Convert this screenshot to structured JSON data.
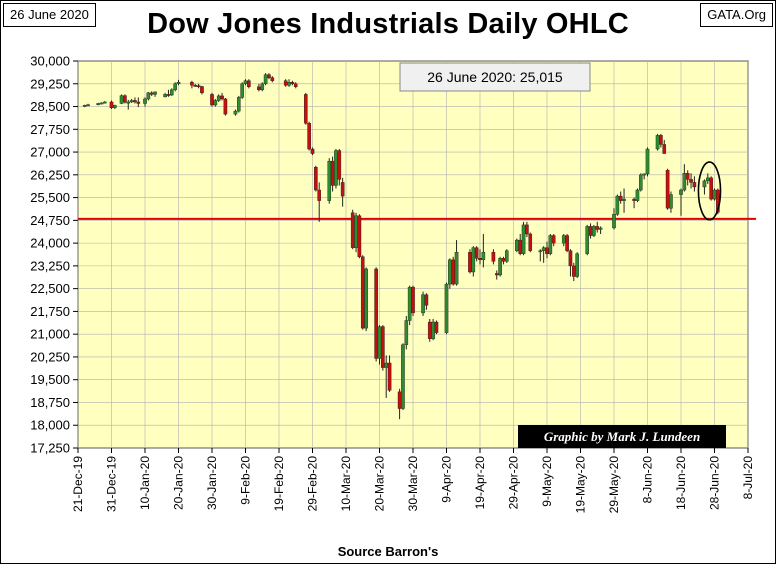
{
  "header": {
    "date_label": "26 June 2020",
    "source_label": "GATA.Org",
    "title": "Dow Jones Industrials Daily OHLC"
  },
  "annotations": {
    "latest_close": "26 June 2020: 25,015",
    "credit": "Graphic by Mark J. Lundeen",
    "source": "Source Barron's"
  },
  "colors": {
    "plot_bg": "#ffffc0",
    "up": "#2e8b2e",
    "down": "#c01010",
    "reference_line": "#e00000",
    "grid": "#b0b0b0"
  },
  "chart_data": {
    "type": "candlestick",
    "title": "Dow Jones Industrials Daily OHLC",
    "xlabel": "Source Barron's",
    "ylabel": "",
    "ylim": [
      17250,
      30000
    ],
    "yticks": [
      17250,
      18000,
      18750,
      19500,
      20250,
      21000,
      21750,
      22500,
      23250,
      24000,
      24750,
      25500,
      26250,
      27000,
      27750,
      28500,
      29250,
      30000
    ],
    "ytick_labels": [
      "17,250",
      "18,000",
      "18,750",
      "19,500",
      "20,250",
      "21,000",
      "21,750",
      "22,500",
      "23,250",
      "24,000",
      "24,750",
      "25,500",
      "26,250",
      "27,000",
      "27,750",
      "28,500",
      "29,250",
      "30,000"
    ],
    "xticks": [
      "21-Dec-19",
      "31-Dec-19",
      "10-Jan-20",
      "20-Jan-20",
      "30-Jan-20",
      "9-Feb-20",
      "19-Feb-20",
      "29-Feb-20",
      "10-Mar-20",
      "20-Mar-20",
      "30-Mar-20",
      "9-Apr-20",
      "19-Apr-20",
      "29-Apr-20",
      "9-May-20",
      "19-May-20",
      "29-May-20",
      "8-Jun-20",
      "18-Jun-20",
      "28-Jun-20",
      "8-Jul-20"
    ],
    "xrange_days": [
      0,
      200
    ],
    "grid": true,
    "reference_line": 24800,
    "candles": [
      {
        "d": 2,
        "o": 28520,
        "h": 28560,
        "l": 28480,
        "c": 28540
      },
      {
        "d": 3,
        "o": 28540,
        "h": 28590,
        "l": 28520,
        "c": 28560
      },
      {
        "d": 6,
        "o": 28560,
        "h": 28620,
        "l": 28540,
        "c": 28600
      },
      {
        "d": 7,
        "o": 28600,
        "h": 28640,
        "l": 28570,
        "c": 28620
      },
      {
        "d": 8,
        "o": 28620,
        "h": 28680,
        "l": 28600,
        "c": 28650
      },
      {
        "d": 10,
        "o": 28650,
        "h": 28700,
        "l": 28420,
        "c": 28460
      },
      {
        "d": 11,
        "o": 28460,
        "h": 28560,
        "l": 28420,
        "c": 28540
      },
      {
        "d": 13,
        "o": 28600,
        "h": 28900,
        "l": 28580,
        "c": 28860
      },
      {
        "d": 14,
        "o": 28860,
        "h": 28900,
        "l": 28600,
        "c": 28640
      },
      {
        "d": 15,
        "o": 28640,
        "h": 28720,
        "l": 28400,
        "c": 28650
      },
      {
        "d": 16,
        "o": 28650,
        "h": 28750,
        "l": 28620,
        "c": 28700
      },
      {
        "d": 17,
        "o": 28700,
        "h": 28800,
        "l": 28600,
        "c": 28650
      },
      {
        "d": 18,
        "o": 28650,
        "h": 28800,
        "l": 28480,
        "c": 28600
      },
      {
        "d": 20,
        "o": 28600,
        "h": 28800,
        "l": 28500,
        "c": 28750
      },
      {
        "d": 21,
        "o": 28750,
        "h": 28980,
        "l": 28700,
        "c": 28950
      },
      {
        "d": 22,
        "o": 28950,
        "h": 29000,
        "l": 28850,
        "c": 28900
      },
      {
        "d": 23,
        "o": 28900,
        "h": 29000,
        "l": 28820,
        "c": 28980
      },
      {
        "d": 26,
        "o": 28820,
        "h": 28950,
        "l": 28800,
        "c": 28900
      },
      {
        "d": 27,
        "o": 28900,
        "h": 29050,
        "l": 28820,
        "c": 28880
      },
      {
        "d": 28,
        "o": 28880,
        "h": 29100,
        "l": 28850,
        "c": 29050
      },
      {
        "d": 29,
        "o": 29050,
        "h": 29300,
        "l": 29000,
        "c": 29250
      },
      {
        "d": 30,
        "o": 29250,
        "h": 29380,
        "l": 29200,
        "c": 29300
      },
      {
        "d": 34,
        "o": 29300,
        "h": 29350,
        "l": 29100,
        "c": 29200
      },
      {
        "d": 35,
        "o": 29200,
        "h": 29250,
        "l": 29150,
        "c": 29190
      },
      {
        "d": 36,
        "o": 29190,
        "h": 29250,
        "l": 29100,
        "c": 29160
      },
      {
        "d": 37,
        "o": 29160,
        "h": 29180,
        "l": 28900,
        "c": 28950
      },
      {
        "d": 40,
        "o": 28900,
        "h": 28950,
        "l": 28500,
        "c": 28550
      },
      {
        "d": 41,
        "o": 28550,
        "h": 28750,
        "l": 28500,
        "c": 28700
      },
      {
        "d": 42,
        "o": 28700,
        "h": 28900,
        "l": 28650,
        "c": 28850
      },
      {
        "d": 43,
        "o": 28850,
        "h": 28950,
        "l": 28700,
        "c": 28750
      },
      {
        "d": 44,
        "o": 28750,
        "h": 28780,
        "l": 28200,
        "c": 28250
      },
      {
        "d": 47,
        "o": 28250,
        "h": 28400,
        "l": 28200,
        "c": 28350
      },
      {
        "d": 48,
        "o": 28350,
        "h": 28850,
        "l": 28300,
        "c": 28800
      },
      {
        "d": 49,
        "o": 28800,
        "h": 29300,
        "l": 28750,
        "c": 29250
      },
      {
        "d": 50,
        "o": 29250,
        "h": 29400,
        "l": 29200,
        "c": 29350
      },
      {
        "d": 51,
        "o": 29350,
        "h": 29400,
        "l": 29100,
        "c": 29150
      },
      {
        "d": 54,
        "o": 29150,
        "h": 29250,
        "l": 29000,
        "c": 29050
      },
      {
        "d": 55,
        "o": 29050,
        "h": 29300,
        "l": 29000,
        "c": 29250
      },
      {
        "d": 56,
        "o": 29250,
        "h": 29600,
        "l": 29200,
        "c": 29550
      },
      {
        "d": 57,
        "o": 29550,
        "h": 29600,
        "l": 29400,
        "c": 29450
      },
      {
        "d": 58,
        "o": 29450,
        "h": 29500,
        "l": 29300,
        "c": 29350
      },
      {
        "d": 62,
        "o": 29350,
        "h": 29400,
        "l": 29150,
        "c": 29200
      },
      {
        "d": 63,
        "o": 29200,
        "h": 29400,
        "l": 29150,
        "c": 29300
      },
      {
        "d": 64,
        "o": 29300,
        "h": 29350,
        "l": 29200,
        "c": 29250
      },
      {
        "d": 65,
        "o": 29250,
        "h": 29300,
        "l": 29100,
        "c": 29150
      },
      {
        "d": 68,
        "o": 28900,
        "h": 28950,
        "l": 27900,
        "c": 27950
      },
      {
        "d": 69,
        "o": 27950,
        "h": 28000,
        "l": 27050,
        "c": 27100
      },
      {
        "d": 70,
        "o": 27100,
        "h": 27150,
        "l": 26900,
        "c": 26950
      },
      {
        "d": 71,
        "o": 26500,
        "h": 26550,
        "l": 25700,
        "c": 25750
      },
      {
        "d": 72,
        "o": 25750,
        "h": 26000,
        "l": 24700,
        "c": 25400
      },
      {
        "d": 75,
        "o": 25400,
        "h": 26800,
        "l": 25300,
        "c": 26700
      },
      {
        "d": 76,
        "o": 26700,
        "h": 26850,
        "l": 25700,
        "c": 25900
      },
      {
        "d": 77,
        "o": 25900,
        "h": 27100,
        "l": 25800,
        "c": 27050
      },
      {
        "d": 78,
        "o": 27050,
        "h": 27100,
        "l": 25900,
        "c": 26100
      },
      {
        "d": 79,
        "o": 26000,
        "h": 26150,
        "l": 25200,
        "c": 25550
      },
      {
        "d": 82,
        "o": 25000,
        "h": 25100,
        "l": 23800,
        "c": 23850
      },
      {
        "d": 83,
        "o": 23850,
        "h": 25000,
        "l": 23700,
        "c": 24900
      },
      {
        "d": 84,
        "o": 24900,
        "h": 24950,
        "l": 23500,
        "c": 23550
      },
      {
        "d": 85,
        "o": 23550,
        "h": 23600,
        "l": 21150,
        "c": 21200
      },
      {
        "d": 86,
        "o": 21200,
        "h": 23200,
        "l": 21100,
        "c": 23150
      },
      {
        "d": 89,
        "o": 23150,
        "h": 23200,
        "l": 20100,
        "c": 20200
      },
      {
        "d": 90,
        "o": 20200,
        "h": 21300,
        "l": 20000,
        "c": 21250
      },
      {
        "d": 91,
        "o": 21250,
        "h": 21300,
        "l": 19800,
        "c": 19900
      },
      {
        "d": 92,
        "o": 19900,
        "h": 20300,
        "l": 18900,
        "c": 20050
      },
      {
        "d": 93,
        "o": 20050,
        "h": 20300,
        "l": 19100,
        "c": 19150
      },
      {
        "d": 96,
        "o": 19100,
        "h": 19200,
        "l": 18200,
        "c": 18550
      },
      {
        "d": 97,
        "o": 18550,
        "h": 20700,
        "l": 18500,
        "c": 20650
      },
      {
        "d": 98,
        "o": 20650,
        "h": 21600,
        "l": 20500,
        "c": 21450
      },
      {
        "d": 99,
        "o": 21450,
        "h": 22600,
        "l": 21300,
        "c": 22550
      },
      {
        "d": 100,
        "o": 22550,
        "h": 22600,
        "l": 21600,
        "c": 21700
      },
      {
        "d": 103,
        "o": 21700,
        "h": 22400,
        "l": 21600,
        "c": 22300
      },
      {
        "d": 104,
        "o": 22300,
        "h": 22350,
        "l": 21800,
        "c": 21950
      },
      {
        "d": 105,
        "o": 21400,
        "h": 21500,
        "l": 20750,
        "c": 20850
      },
      {
        "d": 106,
        "o": 20850,
        "h": 21500,
        "l": 20800,
        "c": 21400
      },
      {
        "d": 107,
        "o": 21400,
        "h": 21450,
        "l": 21000,
        "c": 21050
      },
      {
        "d": 110,
        "o": 21050,
        "h": 22700,
        "l": 21000,
        "c": 22650
      },
      {
        "d": 111,
        "o": 22650,
        "h": 23500,
        "l": 22500,
        "c": 23450
      },
      {
        "d": 112,
        "o": 23450,
        "h": 23550,
        "l": 22600,
        "c": 22650
      },
      {
        "d": 113,
        "o": 22650,
        "h": 24100,
        "l": 22600,
        "c": 23700
      },
      {
        "d": 117,
        "o": 23700,
        "h": 23800,
        "l": 23000,
        "c": 23050
      },
      {
        "d": 118,
        "o": 23050,
        "h": 23900,
        "l": 22900,
        "c": 23850
      },
      {
        "d": 119,
        "o": 23850,
        "h": 23900,
        "l": 23400,
        "c": 23500
      },
      {
        "d": 120,
        "o": 23500,
        "h": 23800,
        "l": 23300,
        "c": 23450
      },
      {
        "d": 121,
        "o": 23450,
        "h": 24300,
        "l": 23200,
        "c": 23700
      },
      {
        "d": 124,
        "o": 23700,
        "h": 23800,
        "l": 23300,
        "c": 23400
      },
      {
        "d": 125,
        "o": 23000,
        "h": 23100,
        "l": 22800,
        "c": 22950
      },
      {
        "d": 126,
        "o": 22950,
        "h": 23550,
        "l": 22900,
        "c": 23500
      },
      {
        "d": 127,
        "o": 23500,
        "h": 23550,
        "l": 23300,
        "c": 23400
      },
      {
        "d": 128,
        "o": 23400,
        "h": 23800,
        "l": 23350,
        "c": 23750
      },
      {
        "d": 131,
        "o": 23750,
        "h": 24150,
        "l": 23700,
        "c": 24100
      },
      {
        "d": 132,
        "o": 24100,
        "h": 24300,
        "l": 23600,
        "c": 23650
      },
      {
        "d": 133,
        "o": 23650,
        "h": 24700,
        "l": 23600,
        "c": 24600
      },
      {
        "d": 134,
        "o": 24600,
        "h": 24700,
        "l": 24200,
        "c": 24300
      },
      {
        "d": 135,
        "o": 24300,
        "h": 24350,
        "l": 23700,
        "c": 23750
      },
      {
        "d": 138,
        "o": 23750,
        "h": 23800,
        "l": 23400,
        "c": 23750
      },
      {
        "d": 139,
        "o": 23750,
        "h": 23900,
        "l": 23350,
        "c": 23850
      },
      {
        "d": 140,
        "o": 23850,
        "h": 24050,
        "l": 23500,
        "c": 23650
      },
      {
        "d": 141,
        "o": 23650,
        "h": 24300,
        "l": 23600,
        "c": 24250
      },
      {
        "d": 142,
        "o": 24250,
        "h": 24300,
        "l": 23900,
        "c": 24000
      },
      {
        "d": 145,
        "o": 24000,
        "h": 24300,
        "l": 23900,
        "c": 24250
      },
      {
        "d": 146,
        "o": 24250,
        "h": 24300,
        "l": 23700,
        "c": 23750
      },
      {
        "d": 147,
        "o": 23750,
        "h": 23800,
        "l": 22900,
        "c": 23250
      },
      {
        "d": 148,
        "o": 23250,
        "h": 23350,
        "l": 22750,
        "c": 22900
      },
      {
        "d": 149,
        "o": 22900,
        "h": 23700,
        "l": 22850,
        "c": 23650
      },
      {
        "d": 152,
        "o": 23650,
        "h": 24600,
        "l": 23600,
        "c": 24550
      },
      {
        "d": 153,
        "o": 24550,
        "h": 24650,
        "l": 24150,
        "c": 24250
      },
      {
        "d": 154,
        "o": 24250,
        "h": 24600,
        "l": 24200,
        "c": 24550
      },
      {
        "d": 155,
        "o": 24550,
        "h": 24700,
        "l": 24350,
        "c": 24450
      },
      {
        "d": 156,
        "o": 24450,
        "h": 24550,
        "l": 24300,
        "c": 24500
      },
      {
        "d": 160,
        "o": 24500,
        "h": 25150,
        "l": 24450,
        "c": 24950
      },
      {
        "d": 161,
        "o": 24950,
        "h": 25600,
        "l": 24900,
        "c": 25550
      },
      {
        "d": 162,
        "o": 25550,
        "h": 25700,
        "l": 25300,
        "c": 25400
      },
      {
        "d": 163,
        "o": 25400,
        "h": 25800,
        "l": 25000,
        "c": 25450
      },
      {
        "d": 166,
        "o": 25450,
        "h": 25500,
        "l": 25150,
        "c": 25400
      },
      {
        "d": 167,
        "o": 25400,
        "h": 25800,
        "l": 25350,
        "c": 25750
      },
      {
        "d": 168,
        "o": 25750,
        "h": 26300,
        "l": 25700,
        "c": 26250
      },
      {
        "d": 169,
        "o": 26250,
        "h": 26300,
        "l": 26100,
        "c": 26280
      },
      {
        "d": 170,
        "o": 26280,
        "h": 27150,
        "l": 26200,
        "c": 27100
      },
      {
        "d": 173,
        "o": 27100,
        "h": 27600,
        "l": 27050,
        "c": 27550
      },
      {
        "d": 174,
        "o": 27550,
        "h": 27600,
        "l": 27150,
        "c": 27250
      },
      {
        "d": 175,
        "o": 27250,
        "h": 27400,
        "l": 26950,
        "c": 26950
      },
      {
        "d": 176,
        "o": 26400,
        "h": 26450,
        "l": 25100,
        "c": 25150
      },
      {
        "d": 177,
        "o": 25150,
        "h": 25700,
        "l": 25000,
        "c": 25600
      },
      {
        "d": 180,
        "o": 25600,
        "h": 25800,
        "l": 24900,
        "c": 25750
      },
      {
        "d": 181,
        "o": 25750,
        "h": 26600,
        "l": 25700,
        "c": 26300
      },
      {
        "d": 182,
        "o": 26300,
        "h": 26400,
        "l": 25900,
        "c": 26100
      },
      {
        "d": 183,
        "o": 26100,
        "h": 26300,
        "l": 25800,
        "c": 26000
      },
      {
        "d": 184,
        "o": 26000,
        "h": 26200,
        "l": 25700,
        "c": 25850
      },
      {
        "d": 187,
        "o": 25850,
        "h": 26100,
        "l": 25600,
        "c": 26050
      },
      {
        "d": 188,
        "o": 26050,
        "h": 26300,
        "l": 25950,
        "c": 26150
      },
      {
        "d": 189,
        "o": 26150,
        "h": 26200,
        "l": 25400,
        "c": 25450
      },
      {
        "d": 190,
        "o": 25450,
        "h": 25800,
        "l": 25400,
        "c": 25750
      },
      {
        "d": 191,
        "o": 25750,
        "h": 25800,
        "l": 24950,
        "c": 25015
      }
    ],
    "highlight_ellipse": {
      "d_center": 188.5,
      "value_center": 25720,
      "d_radius": 3.3,
      "value_radius": 950
    }
  }
}
